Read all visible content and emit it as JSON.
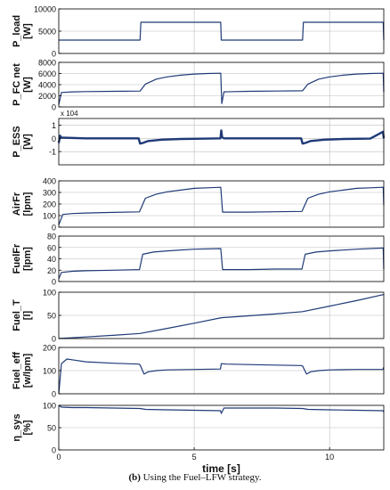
{
  "caption": {
    "label": "(b)",
    "text": "Using the Fuel–LFW strategy."
  },
  "colors": {
    "line": "#1f3a77",
    "axis": "#000000",
    "grid": "#bdbdbd",
    "background": "#ffffff"
  },
  "chart_data": [
    {
      "type": "line",
      "ylabel": "P_load [W]",
      "ylabel_lines": [
        "P_load",
        "[W]"
      ],
      "ylim": [
        0,
        10000
      ],
      "yticks": [
        "0",
        "5000",
        "10000"
      ],
      "ytick_values": [
        0,
        5000,
        10000
      ],
      "xlim": [
        0,
        12
      ],
      "grid": true,
      "x": [
        0,
        3,
        3.03,
        5.98,
        6.0,
        9.0,
        9.03,
        11.98,
        12.0
      ],
      "values": [
        3000,
        3000,
        7000,
        7000,
        3000,
        3000,
        7000,
        7000,
        3000
      ]
    },
    {
      "type": "line",
      "ylabel": "P_FC net [W]",
      "ylabel_lines": [
        "P_FC net",
        "[W]"
      ],
      "ylim": [
        0,
        8000
      ],
      "yticks": [
        "0",
        "2000",
        "4000",
        "6000",
        "8000"
      ],
      "ytick_values": [
        0,
        2000,
        4000,
        6000,
        8000
      ],
      "xlim": [
        0,
        12
      ],
      "grid": true,
      "x": [
        0,
        0.1,
        0.5,
        1,
        2,
        3,
        3.2,
        3.6,
        4,
        4.5,
        5,
        5.5,
        5.98,
        6.02,
        6.1,
        6.5,
        7,
        8,
        9,
        9.2,
        9.6,
        10,
        10.5,
        11,
        11.5,
        11.98,
        12.0
      ],
      "values": [
        400,
        2600,
        2700,
        2750,
        2800,
        2850,
        4100,
        5000,
        5400,
        5700,
        5900,
        6000,
        6050,
        600,
        2700,
        2750,
        2800,
        2850,
        2900,
        4100,
        5000,
        5400,
        5700,
        5900,
        6000,
        6050,
        2700
      ]
    },
    {
      "type": "line",
      "ylabel": "P_ESS [W]",
      "ylabel_lines": [
        "P_ESS",
        "[W]"
      ],
      "multiplier": "x 10^4",
      "ylim": [
        -2,
        1.5
      ],
      "yticks": [
        "-1",
        "0",
        "1"
      ],
      "ytick_values": [
        -1,
        0,
        1
      ],
      "xlim": [
        0,
        12
      ],
      "grid": true,
      "x": [
        0,
        0.05,
        0.1,
        1,
        2,
        2.95,
        3.0,
        3.1,
        3.3,
        3.8,
        4.5,
        5.5,
        5.97,
        6.0,
        6.03,
        6.1,
        7,
        8,
        8.95,
        9.0,
        9.1,
        9.3,
        9.8,
        10.5,
        11.5,
        11.97,
        12.0
      ],
      "values": [
        -0.35,
        0.2,
        0.05,
        0.0,
        0.0,
        0.0,
        -0.4,
        -0.35,
        -0.2,
        -0.1,
        -0.05,
        -0.02,
        0.0,
        0.6,
        0.1,
        0.0,
        0.0,
        0.0,
        0.0,
        -0.4,
        -0.35,
        -0.2,
        -0.1,
        -0.05,
        -0.02,
        0.5,
        0.0
      ]
    },
    {
      "type": "line",
      "ylabel": "AirFr [lpm]",
      "ylabel_lines": [
        "AirFr",
        "[lpm]"
      ],
      "ylim": [
        0,
        400
      ],
      "yticks": [
        "0",
        "100",
        "200",
        "300",
        "400"
      ],
      "ytick_values": [
        0,
        100,
        200,
        300,
        400
      ],
      "xlim": [
        0,
        12
      ],
      "grid": true,
      "x": [
        0,
        0.15,
        0.5,
        1,
        2,
        2.98,
        3.2,
        3.6,
        4,
        4.5,
        5,
        5.5,
        5.98,
        6.05,
        6.5,
        7,
        8,
        8.98,
        9.2,
        9.6,
        10,
        10.5,
        11,
        11.5,
        11.98,
        12.0
      ],
      "values": [
        20,
        110,
        118,
        122,
        128,
        132,
        250,
        285,
        305,
        320,
        335,
        340,
        345,
        130,
        130,
        130,
        133,
        136,
        250,
        285,
        305,
        320,
        335,
        340,
        345,
        190
      ]
    },
    {
      "type": "line",
      "ylabel": "FuelFr [lpm]",
      "ylabel_lines": [
        "FuelFr",
        "[lpm]"
      ],
      "ylim": [
        0,
        80
      ],
      "yticks": [
        "0",
        "20",
        "40",
        "60",
        "80"
      ],
      "ytick_values": [
        0,
        20,
        40,
        60,
        80
      ],
      "xlim": [
        0,
        12
      ],
      "grid": true,
      "x": [
        0,
        0.1,
        0.5,
        1,
        2,
        2.98,
        3.1,
        3.5,
        4,
        5,
        5.98,
        6.05,
        7,
        8,
        8.98,
        9.1,
        9.5,
        10,
        11,
        11.98,
        12.0
      ],
      "values": [
        5,
        16,
        18,
        19,
        20,
        21,
        48,
        52,
        54,
        57,
        58,
        21,
        21,
        22,
        22,
        48,
        52,
        54,
        57,
        59,
        22
      ]
    },
    {
      "type": "line",
      "ylabel": "Fuel_T [l]",
      "ylabel_lines": [
        "Fuel_T",
        "[l]"
      ],
      "ylim": [
        0,
        100
      ],
      "yticks": [
        "0",
        "50",
        "100"
      ],
      "ytick_values": [
        0,
        50,
        100
      ],
      "xlim": [
        0,
        12
      ],
      "grid": true,
      "x": [
        0,
        1,
        2,
        3,
        4,
        5,
        6,
        7,
        8,
        9,
        10,
        11,
        12
      ],
      "values": [
        0,
        3.5,
        7,
        11,
        22,
        33,
        45,
        49,
        53,
        58,
        70,
        82,
        95
      ]
    },
    {
      "type": "line",
      "ylabel": "Fuel_eff [w/lpm]",
      "ylabel_lines": [
        "Fuel_eff",
        "[w/lpm]"
      ],
      "ylim": [
        0,
        200
      ],
      "yticks": [
        "0",
        "100",
        "200"
      ],
      "ytick_values": [
        0,
        100,
        200
      ],
      "xlim": [
        0,
        12
      ],
      "grid": true,
      "x": [
        0,
        0.1,
        0.3,
        0.6,
        1,
        2,
        2.95,
        3.0,
        3.15,
        3.3,
        3.6,
        4,
        5,
        5.97,
        6.0,
        6.2,
        7,
        8,
        8.95,
        9.0,
        9.15,
        9.3,
        9.6,
        10,
        11,
        11.97,
        12.0
      ],
      "values": [
        0,
        130,
        150,
        145,
        138,
        132,
        128,
        125,
        85,
        95,
        100,
        103,
        105,
        107,
        130,
        128,
        126,
        124,
        122,
        120,
        85,
        95,
        100,
        103,
        105,
        105,
        115
      ]
    },
    {
      "type": "line",
      "ylabel": "η_sys [%]",
      "ylabel_lines": [
        "η_sys",
        "[%]"
      ],
      "xlabel": "time [s]",
      "ylim": [
        0,
        100
      ],
      "yticks": [
        "0",
        "50",
        "100"
      ],
      "ytick_values": [
        0,
        50,
        100
      ],
      "xlim": [
        0,
        12
      ],
      "xticks": [
        "0",
        "5",
        "10"
      ],
      "xtick_values": [
        0,
        5,
        10
      ],
      "grid": true,
      "x": [
        0,
        0.1,
        0.5,
        1,
        2,
        3,
        3.2,
        4,
        5,
        5.97,
        6.0,
        6.1,
        7,
        8,
        9,
        9.2,
        10,
        11,
        11.97,
        12.0
      ],
      "values": [
        100,
        96,
        95,
        95,
        94,
        93,
        91,
        90,
        89,
        88,
        82,
        94,
        94,
        94,
        93,
        91,
        90,
        89,
        88,
        85
      ]
    }
  ]
}
